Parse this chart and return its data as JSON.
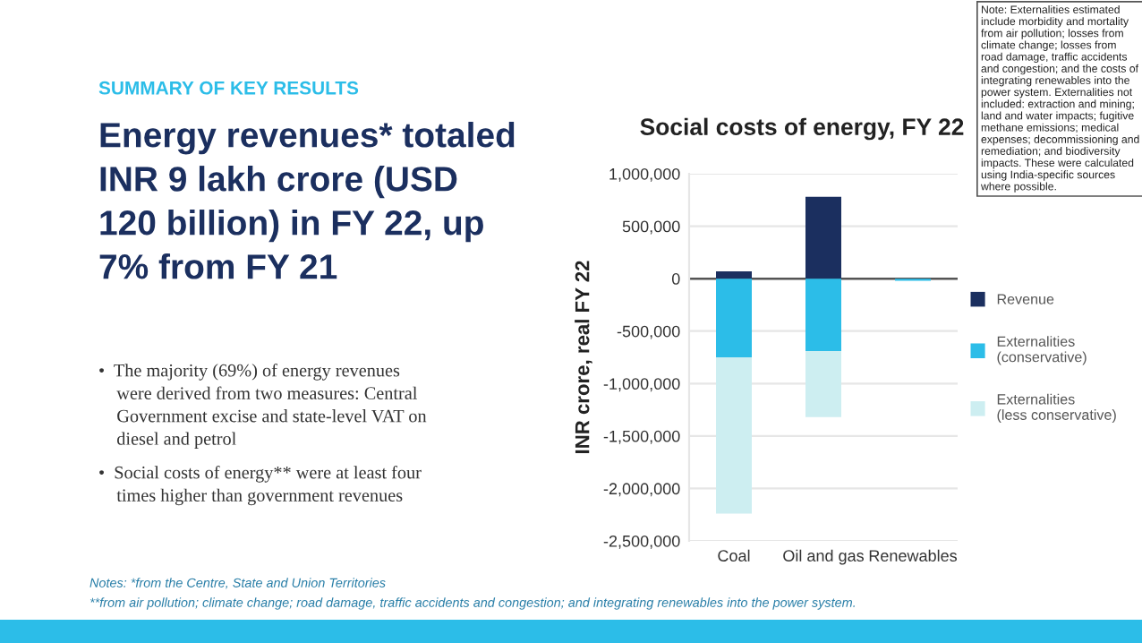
{
  "chart_data": {
    "type": "bar",
    "title": "Social costs of energy, FY 22",
    "ylabel": "INR crore, real FY 22",
    "categories": [
      "Coal",
      "Oil and gas",
      "Renewables"
    ],
    "stacked": true,
    "series": [
      {
        "name": "Revenue",
        "color": "#1b2f5f",
        "values": [
          70000,
          780000,
          null
        ]
      },
      {
        "name": "Externalities (conservative)",
        "color": "#2cbde8",
        "values": [
          -750000,
          -690000,
          -20000
        ]
      },
      {
        "name": "Externalities (less conservative)",
        "color": "#cdeef1",
        "values": [
          -1490000,
          -630000,
          0
        ]
      }
    ],
    "ylim": [
      -2500000,
      1000000
    ],
    "yticks": [
      {
        "value": 1000000,
        "label": "1,000,000"
      },
      {
        "value": 500000,
        "label": "500,000"
      },
      0,
      {
        "value": -500000,
        "label": "-500,000"
      },
      {
        "value": -1000000,
        "label": "-1,000,000"
      },
      {
        "value": -1500000,
        "label": "-1,500,000"
      },
      {
        "value": -2000000,
        "label": "-2,000,000"
      },
      {
        "value": -2500000,
        "label": "-2,500,000"
      }
    ],
    "ref_lines": [
      {
        "axis": "y",
        "value": 0,
        "color": "#555555"
      }
    ],
    "grid": "y",
    "legend": "right",
    "annotations": [
      "SUMMARY OF KEY RESULTS",
      "Energy revenues* totaled\nINR 9 lakh crore (USD\n120 billion) in FY 22, up\n7% from FY 21",
      "•  The majority (69%) of energy revenues\n    were derived from two measures: Central\n    Government excise and state-level VAT on\n    diesel and petrol",
      "•  Social costs of energy** were at least four\n    times higher than government revenues",
      "Notes: *from the Centre, State and Union Territories",
      "**from air pollution; climate change; road damage, traffic accidents and congestion; and integrating renewables into the power system.",
      "Note: Externalities estimated include morbidity and mortality from air pollution; losses from climate change; losses from road damage, traffic accidents and congestion; and the costs of integrating renewables into the power system. Externalities not included: extraction and mining; land and water impacts; fugitive methane emissions; medical expenses; decommissioning and remediation; and biodiversity impacts. These were calculated using India-specific sources where possible."
    ]
  }
}
